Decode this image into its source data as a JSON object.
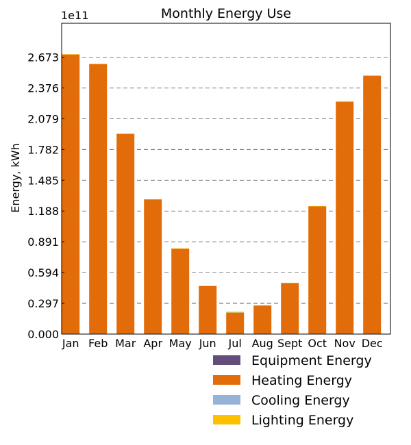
{
  "chart_data": {
    "type": "bar",
    "stacked": true,
    "title": "Monthly Energy Use",
    "xlabel": "",
    "ylabel": "Energy, kWh",
    "offset_text": "1e11",
    "ylim": [
      0,
      3.0
    ],
    "yticks": [
      "0.000",
      "0.297",
      "0.594",
      "0.891",
      "1.188",
      "1.485",
      "1.782",
      "2.079",
      "2.376",
      "2.673"
    ],
    "ytick_values": [
      0.0,
      0.297,
      0.594,
      0.891,
      1.188,
      1.485,
      1.782,
      2.079,
      2.376,
      2.673
    ],
    "grid": "horizontal dashed",
    "legend_position": "bottom-right, outside plot",
    "categories": [
      "Jan",
      "Feb",
      "Mar",
      "Apr",
      "May",
      "Jun",
      "Jul",
      "Aug",
      "Sept",
      "Oct",
      "Nov",
      "Dec"
    ],
    "series": [
      {
        "name": "Equipment Energy",
        "color": "#634d7b",
        "values": [
          0.004,
          0.004,
          0.004,
          0.004,
          0.004,
          0.004,
          0.004,
          0.004,
          0.004,
          0.004,
          0.004,
          0.004
        ]
      },
      {
        "name": "Heating Energy",
        "color": "#e36c0a",
        "values": [
          2.695,
          2.603,
          1.929,
          1.296,
          0.821,
          0.46,
          0.202,
          0.272,
          0.489,
          1.23,
          2.236,
          2.49
        ]
      },
      {
        "name": "Cooling Energy",
        "color": "#95b3d7",
        "values": [
          0,
          0,
          0,
          0,
          0,
          0,
          0.002,
          0,
          0,
          0,
          0,
          0
        ]
      },
      {
        "name": "Lighting Energy",
        "color": "#ffc000",
        "values": [
          0.002,
          0.002,
          0.002,
          0.002,
          0.002,
          0.002,
          0.008,
          0.002,
          0.002,
          0.002,
          0.008,
          0.002
        ]
      }
    ]
  }
}
